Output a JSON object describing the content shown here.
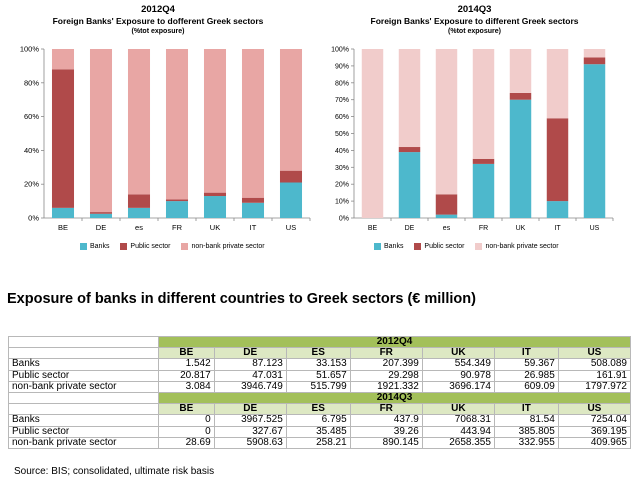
{
  "chart_data": [
    {
      "type": "bar",
      "stacked": true,
      "normalized": true,
      "title": "2012Q4",
      "subtitle": "Foreign Banks' Exposure to dofferent Greek sectors",
      "note": "(%tot exposure)",
      "categories": [
        "BE",
        "DE",
        "es",
        "FR",
        "UK",
        "IT",
        "US"
      ],
      "ylim": [
        0,
        100
      ],
      "yticks": [
        "0%",
        "20%",
        "40%",
        "60%",
        "80%",
        "100%"
      ],
      "series": [
        {
          "name": "Banks",
          "color": "#4db8cc",
          "values": [
            6,
            2.5,
            6,
            10,
            13,
            9,
            21
          ]
        },
        {
          "name": "Public sector",
          "color": "#b04a4a",
          "values": [
            82,
            1,
            8,
            1,
            2,
            3,
            7
          ]
        },
        {
          "name": "non-bank private sector",
          "color": "#e8a6a4",
          "values": [
            12,
            96.5,
            86,
            89,
            85,
            88,
            72
          ]
        }
      ]
    },
    {
      "type": "bar",
      "stacked": true,
      "normalized": true,
      "title": "2014Q3",
      "subtitle": "Foreign Banks' Exposure to different Greek sectors",
      "note": "(%tot exposure)",
      "categories": [
        "BE",
        "DE",
        "es",
        "FR",
        "UK",
        "IT",
        "US"
      ],
      "ylim": [
        0,
        100
      ],
      "yticks": [
        "0%",
        "10%",
        "20%",
        "30%",
        "40%",
        "50%",
        "60%",
        "70%",
        "80%",
        "90%",
        "100%"
      ],
      "series": [
        {
          "name": "Banks",
          "color": "#4db8cc",
          "values": [
            0,
            39,
            2,
            32,
            70,
            10,
            91
          ]
        },
        {
          "name": "Public sector",
          "color": "#b04a4a",
          "values": [
            0,
            3,
            12,
            3,
            4,
            49,
            4
          ]
        },
        {
          "name": "non-bank private sector",
          "color": "#f1cccb",
          "values": [
            100,
            58,
            86,
            65,
            26,
            41,
            5
          ]
        }
      ]
    }
  ],
  "heading": "Exposure of banks in different countries to Greek sectors (€ million)",
  "table": {
    "columns": [
      "BE",
      "DE",
      "ES",
      "FR",
      "UK",
      "IT",
      "US"
    ],
    "periods": [
      {
        "label": "2012Q4",
        "rows": [
          {
            "label": "Banks",
            "values": [
              "1.542",
              "87.123",
              "33.153",
              "207.399",
              "554.349",
              "59.367",
              "508.089"
            ]
          },
          {
            "label": "Public sector",
            "values": [
              "20.817",
              "47.031",
              "51.657",
              "29.298",
              "90.978",
              "26.985",
              "161.91"
            ]
          },
          {
            "label": "non-bank private sector",
            "values": [
              "3.084",
              "3946.749",
              "515.799",
              "1921.332",
              "3696.174",
              "609.09",
              "1797.972"
            ]
          }
        ]
      },
      {
        "label": "2014Q3",
        "rows": [
          {
            "label": "Banks",
            "values": [
              "0",
              "3967.525",
              "6.795",
              "437.9",
              "7068.31",
              "81.54",
              "7254.04"
            ]
          },
          {
            "label": "Public sector",
            "values": [
              "0",
              "327.67",
              "35.485",
              "39.26",
              "443.94",
              "385.805",
              "369.195"
            ]
          },
          {
            "label": "non-bank private sector",
            "values": [
              "28.69",
              "5908.63",
              "258.21",
              "890.145",
              "2658.355",
              "332.955",
              "409.965"
            ]
          }
        ]
      }
    ]
  },
  "source": "Source: BIS; consolidated, ultimate risk basis"
}
